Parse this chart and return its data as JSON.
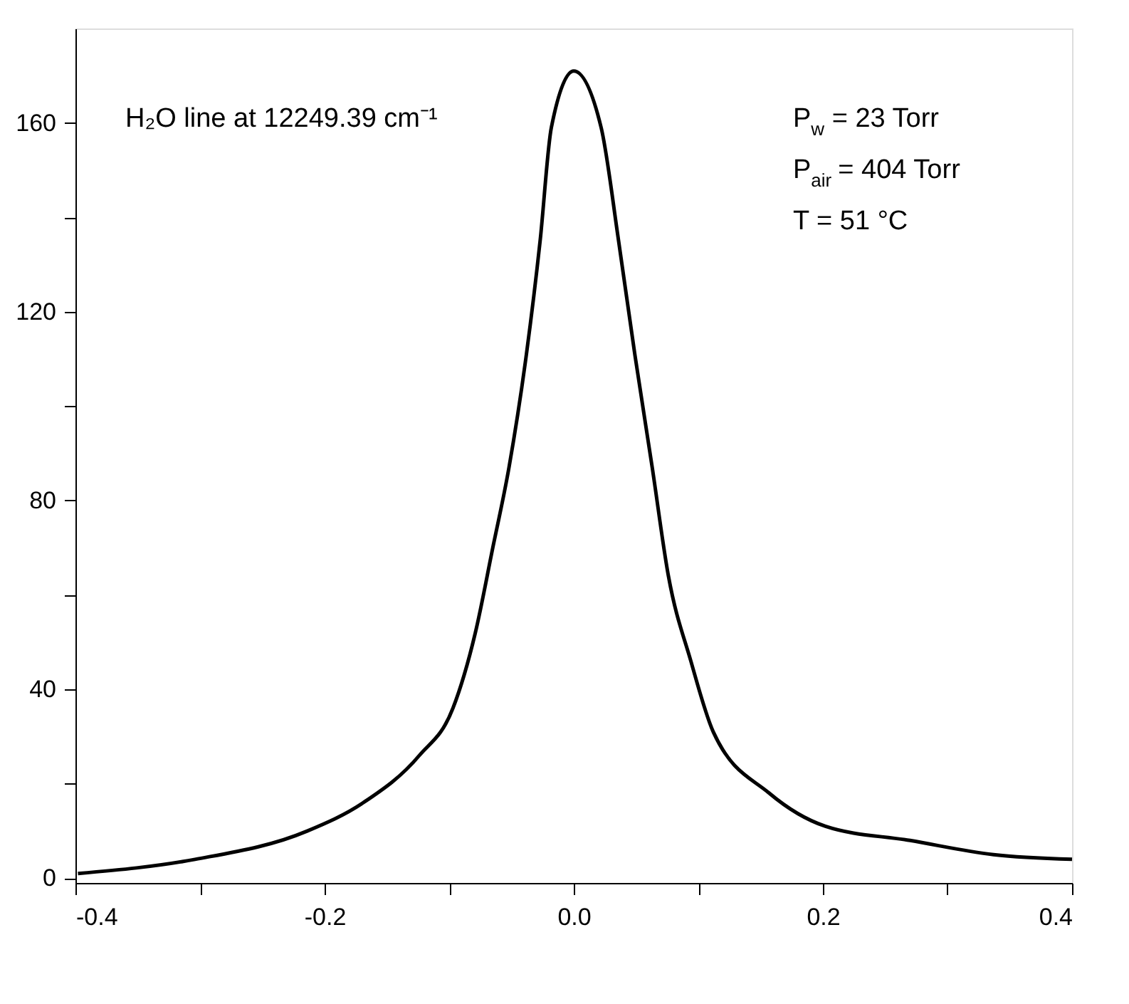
{
  "chart_data": {
    "type": "line",
    "annotations": [
      "H₂O line at 12249.39 cm⁻¹",
      "P$_{w}$ = 23 Torr",
      "P$_{air}$ = 404 Torr",
      "T = 51 °C"
    ],
    "series": [
      {
        "color": "#000000",
        "x": [
          -0.398,
          -0.304,
          -0.214,
          -0.169,
          -0.124,
          -0.097,
          -0.079,
          -0.065,
          -0.052,
          -0.038,
          -0.027,
          -0.018,
          0.0,
          0.022,
          0.036,
          0.049,
          0.063,
          0.076,
          0.094,
          0.112,
          0.157,
          0.202,
          0.27,
          0.337,
          0.4
        ],
        "values": [
          1,
          4,
          10,
          16,
          26,
          36,
          52,
          70,
          87,
          111,
          135,
          159,
          171,
          159,
          135,
          111,
          87,
          64,
          46,
          31,
          18,
          11,
          8,
          5,
          4
        ]
      }
    ],
    "xlim": [
      -0.4,
      0.4
    ],
    "xticks": [
      -0.4,
      {
        "value": -0.3,
        "label": null
      },
      -0.2,
      {
        "value": -0.1,
        "label": null
      },
      {
        "value": 0,
        "label": "0.0"
      },
      {
        "value": 0.1,
        "label": null
      },
      0.2,
      {
        "value": 0.3,
        "label": null
      },
      0.4
    ],
    "ylim": [
      -1,
      180
    ],
    "yticks": [
      0,
      {
        "value": 20,
        "label": null
      },
      40,
      {
        "value": 60,
        "label": null
      },
      80,
      {
        "value": 100,
        "label": null
      },
      120,
      {
        "value": 140,
        "label": null
      },
      160
    ],
    "grid": false,
    "marker": "none",
    "line_style": "solid"
  }
}
